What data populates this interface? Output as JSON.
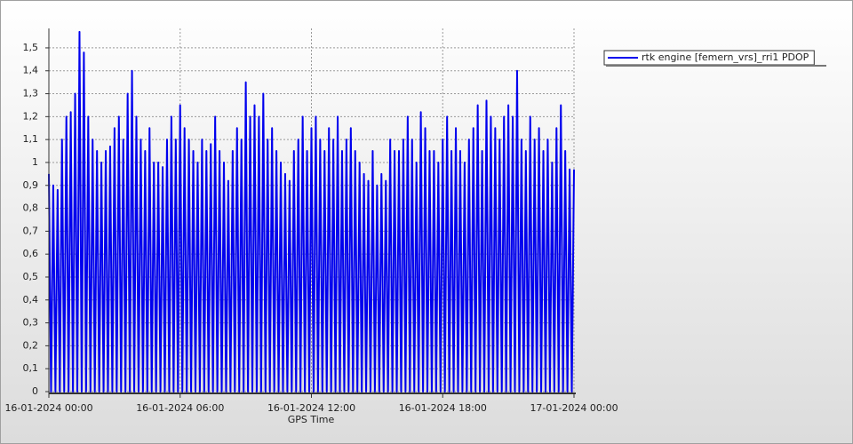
{
  "chart_data": {
    "type": "line",
    "x_label": "GPS Time",
    "x": [
      "16-01-2024 00:00",
      "16-01-2024 00:06",
      "16-01-2024 00:12",
      "16-01-2024 00:18",
      "16-01-2024 00:24",
      "16-01-2024 00:30",
      "16-01-2024 00:36",
      "16-01-2024 00:42",
      "16-01-2024 00:48",
      "16-01-2024 00:54",
      "16-01-2024 01:00",
      "16-01-2024 01:06",
      "16-01-2024 01:12",
      "16-01-2024 01:18",
      "16-01-2024 01:24",
      "16-01-2024 01:30",
      "16-01-2024 01:36",
      "16-01-2024 01:42",
      "16-01-2024 01:48",
      "16-01-2024 01:54",
      "16-01-2024 02:00",
      "16-01-2024 02:06",
      "16-01-2024 02:12",
      "16-01-2024 02:18",
      "16-01-2024 02:24",
      "16-01-2024 02:30",
      "16-01-2024 02:36",
      "16-01-2024 02:42",
      "16-01-2024 02:48",
      "16-01-2024 02:54",
      "16-01-2024 03:00",
      "16-01-2024 03:06",
      "16-01-2024 03:12",
      "16-01-2024 03:18",
      "16-01-2024 03:24",
      "16-01-2024 03:30",
      "16-01-2024 03:36",
      "16-01-2024 03:42",
      "16-01-2024 03:48",
      "16-01-2024 03:54",
      "16-01-2024 04:00",
      "16-01-2024 04:06",
      "16-01-2024 04:12",
      "16-01-2024 04:18",
      "16-01-2024 04:24",
      "16-01-2024 04:30",
      "16-01-2024 04:36",
      "16-01-2024 04:42",
      "16-01-2024 04:48",
      "16-01-2024 04:54",
      "16-01-2024 05:00",
      "16-01-2024 05:06",
      "16-01-2024 05:12",
      "16-01-2024 05:18",
      "16-01-2024 05:24",
      "16-01-2024 05:30",
      "16-01-2024 05:36",
      "16-01-2024 05:42",
      "16-01-2024 05:48",
      "16-01-2024 05:54",
      "16-01-2024 06:00",
      "16-01-2024 06:06",
      "16-01-2024 06:12",
      "16-01-2024 06:18",
      "16-01-2024 06:24",
      "16-01-2024 06:30",
      "16-01-2024 06:36",
      "16-01-2024 06:42",
      "16-01-2024 06:48",
      "16-01-2024 06:54",
      "16-01-2024 07:00",
      "16-01-2024 07:06",
      "16-01-2024 07:12",
      "16-01-2024 07:18",
      "16-01-2024 07:24",
      "16-01-2024 07:30",
      "16-01-2024 07:36",
      "16-01-2024 07:42",
      "16-01-2024 07:48",
      "16-01-2024 07:54",
      "16-01-2024 08:00",
      "16-01-2024 08:06",
      "16-01-2024 08:12",
      "16-01-2024 08:18",
      "16-01-2024 08:24",
      "16-01-2024 08:30",
      "16-01-2024 08:36",
      "16-01-2024 08:42",
      "16-01-2024 08:48",
      "16-01-2024 08:54",
      "16-01-2024 09:00",
      "16-01-2024 09:06",
      "16-01-2024 09:12",
      "16-01-2024 09:18",
      "16-01-2024 09:24",
      "16-01-2024 09:30",
      "16-01-2024 09:36",
      "16-01-2024 09:42",
      "16-01-2024 09:48",
      "16-01-2024 09:54",
      "16-01-2024 10:00",
      "16-01-2024 10:06",
      "16-01-2024 10:12",
      "16-01-2024 10:18",
      "16-01-2024 10:24",
      "16-01-2024 10:30",
      "16-01-2024 10:36",
      "16-01-2024 10:42",
      "16-01-2024 10:48",
      "16-01-2024 10:54",
      "16-01-2024 11:00",
      "16-01-2024 11:06",
      "16-01-2024 11:12",
      "16-01-2024 11:18",
      "16-01-2024 11:24",
      "16-01-2024 11:30",
      "16-01-2024 11:36",
      "16-01-2024 11:42",
      "16-01-2024 11:48",
      "16-01-2024 11:54",
      "16-01-2024 12:00",
      "16-01-2024 12:06",
      "16-01-2024 12:12",
      "16-01-2024 12:18",
      "16-01-2024 12:24",
      "16-01-2024 12:30",
      "16-01-2024 12:36",
      "16-01-2024 12:42",
      "16-01-2024 12:48",
      "16-01-2024 12:54",
      "16-01-2024 13:00",
      "16-01-2024 13:06",
      "16-01-2024 13:12",
      "16-01-2024 13:18",
      "16-01-2024 13:24",
      "16-01-2024 13:30",
      "16-01-2024 13:36",
      "16-01-2024 13:42",
      "16-01-2024 13:48",
      "16-01-2024 13:54",
      "16-01-2024 14:00",
      "16-01-2024 14:06",
      "16-01-2024 14:12",
      "16-01-2024 14:18",
      "16-01-2024 14:24",
      "16-01-2024 14:30",
      "16-01-2024 14:36",
      "16-01-2024 14:42",
      "16-01-2024 14:48",
      "16-01-2024 14:54",
      "16-01-2024 15:00",
      "16-01-2024 15:06",
      "16-01-2024 15:12",
      "16-01-2024 15:18",
      "16-01-2024 15:24",
      "16-01-2024 15:30",
      "16-01-2024 15:36",
      "16-01-2024 15:42",
      "16-01-2024 15:48",
      "16-01-2024 15:54",
      "16-01-2024 16:00",
      "16-01-2024 16:06",
      "16-01-2024 16:12",
      "16-01-2024 16:18",
      "16-01-2024 16:24",
      "16-01-2024 16:30",
      "16-01-2024 16:36",
      "16-01-2024 16:42",
      "16-01-2024 16:48",
      "16-01-2024 16:54",
      "16-01-2024 17:00",
      "16-01-2024 17:06",
      "16-01-2024 17:12",
      "16-01-2024 17:18",
      "16-01-2024 17:24",
      "16-01-2024 17:30",
      "16-01-2024 17:36",
      "16-01-2024 17:42",
      "16-01-2024 17:48",
      "16-01-2024 17:54",
      "16-01-2024 18:00",
      "16-01-2024 18:06",
      "16-01-2024 18:12",
      "16-01-2024 18:18",
      "16-01-2024 18:24",
      "16-01-2024 18:30",
      "16-01-2024 18:36",
      "16-01-2024 18:42",
      "16-01-2024 18:48",
      "16-01-2024 18:54",
      "16-01-2024 19:00",
      "16-01-2024 19:06",
      "16-01-2024 19:12",
      "16-01-2024 19:18",
      "16-01-2024 19:24",
      "16-01-2024 19:30",
      "16-01-2024 19:36",
      "16-01-2024 19:42",
      "16-01-2024 19:48",
      "16-01-2024 19:54",
      "16-01-2024 20:00",
      "16-01-2024 20:06",
      "16-01-2024 20:12",
      "16-01-2024 20:18",
      "16-01-2024 20:24",
      "16-01-2024 20:30",
      "16-01-2024 20:36",
      "16-01-2024 20:42",
      "16-01-2024 20:48",
      "16-01-2024 20:54",
      "16-01-2024 21:00",
      "16-01-2024 21:06",
      "16-01-2024 21:12",
      "16-01-2024 21:18",
      "16-01-2024 21:24",
      "16-01-2024 21:30",
      "16-01-2024 21:36",
      "16-01-2024 21:42",
      "16-01-2024 21:48",
      "16-01-2024 21:54",
      "16-01-2024 22:00",
      "16-01-2024 22:06",
      "16-01-2024 22:12",
      "16-01-2024 22:18",
      "16-01-2024 22:24",
      "16-01-2024 22:30",
      "16-01-2024 22:36",
      "16-01-2024 22:42",
      "16-01-2024 22:48",
      "16-01-2024 22:54",
      "16-01-2024 23:00",
      "16-01-2024 23:06",
      "16-01-2024 23:12",
      "16-01-2024 23:18",
      "16-01-2024 23:24",
      "16-01-2024 23:30",
      "16-01-2024 23:36",
      "16-01-2024 23:42",
      "16-01-2024 23:48",
      "16-01-2024 23:54",
      "17-01-2024 00:00"
    ],
    "series": [
      {
        "name": "rtk engine [femern_vrs]_rri1 PDOP",
        "color": "#0000ee",
        "values": [
          0.95,
          0,
          0.9,
          0,
          0.88,
          0,
          1.1,
          0,
          1.2,
          0,
          1.22,
          0,
          1.3,
          0,
          1.57,
          0,
          1.48,
          0,
          1.2,
          0,
          1.1,
          0,
          1.05,
          0,
          1.0,
          0,
          1.05,
          0,
          1.07,
          0,
          1.15,
          0,
          1.2,
          0,
          1.1,
          0,
          1.3,
          0,
          1.4,
          0,
          1.2,
          0,
          1.1,
          0,
          1.05,
          0,
          1.15,
          0,
          1.0,
          0,
          1.0,
          0,
          0.98,
          0,
          1.1,
          0,
          1.2,
          0,
          1.1,
          0,
          1.25,
          0,
          1.15,
          0,
          1.1,
          0,
          1.05,
          0,
          1.0,
          0,
          1.1,
          0,
          1.05,
          0,
          1.08,
          0,
          1.2,
          0,
          1.05,
          0,
          1.0,
          0,
          0.92,
          0,
          1.05,
          0,
          1.15,
          0,
          1.1,
          0,
          1.35,
          0,
          1.2,
          0,
          1.25,
          0,
          1.2,
          0,
          1.3,
          0,
          1.1,
          0,
          1.15,
          0,
          1.05,
          0,
          1.0,
          0,
          0.95,
          0,
          0.92,
          0,
          1.05,
          0,
          1.1,
          0,
          1.2,
          0,
          1.05,
          0,
          1.15,
          0,
          1.2,
          0,
          1.1,
          0,
          1.05,
          0,
          1.15,
          0,
          1.1,
          0,
          1.2,
          0,
          1.05,
          0,
          1.1,
          0,
          1.15,
          0,
          1.05,
          0,
          1.0,
          0,
          0.95,
          0,
          0.92,
          0,
          1.05,
          0,
          0.9,
          0,
          0.95,
          0,
          0.92,
          0,
          1.1,
          0,
          1.05,
          0,
          1.05,
          0,
          1.1,
          0,
          1.2,
          0,
          1.1,
          0,
          1.0,
          0,
          1.22,
          0,
          1.15,
          0,
          1.05,
          0,
          1.05,
          0,
          1.0,
          0,
          1.1,
          0,
          1.2,
          0,
          1.05,
          0,
          1.15,
          0,
          1.05,
          0,
          1.0,
          0,
          1.1,
          0,
          1.15,
          0,
          1.25,
          0,
          1.05,
          0,
          1.27,
          0,
          1.2,
          0,
          1.15,
          0,
          1.1,
          0,
          1.2,
          0,
          1.25,
          0,
          1.2,
          0,
          1.4,
          0,
          1.1,
          0,
          1.05,
          0,
          1.2,
          0,
          1.1,
          0,
          1.15,
          0,
          1.05,
          0,
          1.1,
          0,
          1.0,
          0,
          1.15,
          0,
          1.25,
          0,
          1.05,
          0,
          0.97,
          0,
          0.97
        ]
      }
    ],
    "xlim": [
      "16-01-2024 00:00",
      "17-01-2024 00:00"
    ],
    "xticks": [
      "16-01-2024 00:00",
      "16-01-2024 06:00",
      "16-01-2024 12:00",
      "16-01-2024 18:00",
      "17-01-2024 00:00"
    ],
    "ylim": [
      0,
      1.585
    ],
    "yticks": [
      0,
      {
        "value": 0.1,
        "label": "0,1"
      },
      {
        "value": 0.2,
        "label": "0,2"
      },
      {
        "value": 0.3,
        "label": "0,3"
      },
      {
        "value": 0.4,
        "label": "0,4"
      },
      {
        "value": 0.5,
        "label": "0,5"
      },
      {
        "value": 0.6,
        "label": "0,6"
      },
      {
        "value": 0.7,
        "label": "0,7"
      },
      {
        "value": 0.8,
        "label": "0,8"
      },
      {
        "value": 0.9,
        "label": "0,9"
      },
      1,
      {
        "value": 1.1,
        "label": "1,1"
      },
      {
        "value": 1.2,
        "label": "1,2"
      },
      {
        "value": 1.3,
        "label": "1,3"
      },
      {
        "value": 1.4,
        "label": "1,4"
      },
      {
        "value": 1.5,
        "label": "1,5"
      }
    ],
    "grid": true,
    "legend": "top-right"
  }
}
